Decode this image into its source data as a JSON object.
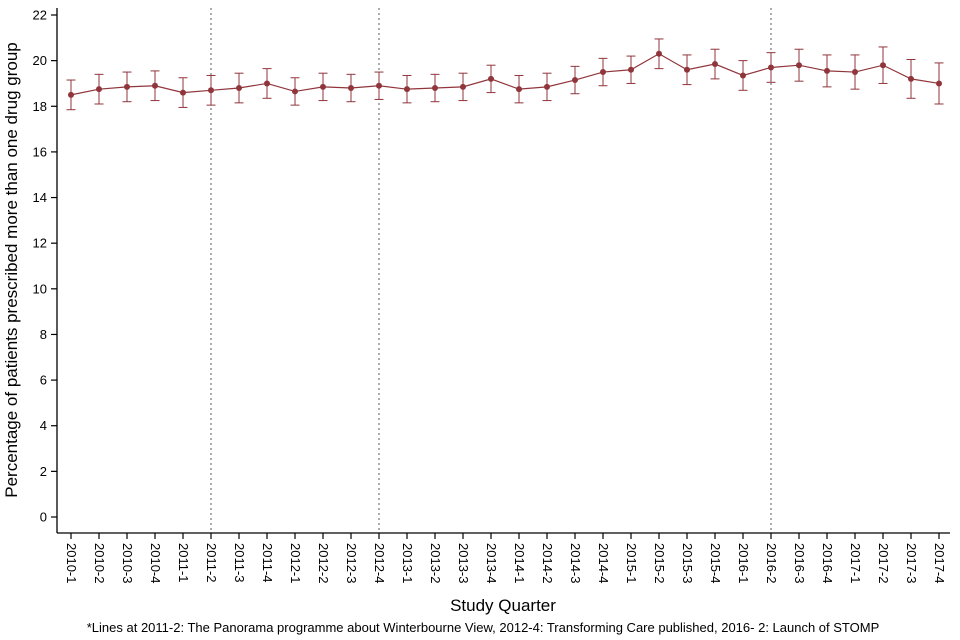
{
  "chart_data": {
    "type": "line",
    "title": "",
    "xlabel": "Study Quarter",
    "ylabel": "Percentage of patients prescribed more than one drug group",
    "ylim": [
      0,
      22
    ],
    "ytick_step": 2,
    "grid": false,
    "legend": "none",
    "categories": [
      "2010-1",
      "2010-2",
      "2010-3",
      "2010-4",
      "2011-1",
      "2011-2",
      "2011-3",
      "2011-4",
      "2012-1",
      "2012-2",
      "2012-3",
      "2012-4",
      "2013-1",
      "2013-2",
      "2013-3",
      "2013-4",
      "2014-1",
      "2014-2",
      "2014-3",
      "2014-4",
      "2015-1",
      "2015-2",
      "2015-3",
      "2015-4",
      "2016-1",
      "2016-2",
      "2016-3",
      "2016-4",
      "2017-1",
      "2017-2",
      "2017-3",
      "2017-4"
    ],
    "series": [
      {
        "name": "Percentage of patients prescribed more than one drug group",
        "values": [
          18.5,
          18.75,
          18.85,
          18.9,
          18.6,
          18.7,
          18.8,
          19.0,
          18.65,
          18.85,
          18.8,
          18.9,
          18.75,
          18.8,
          18.85,
          19.2,
          18.75,
          18.85,
          19.15,
          19.5,
          19.6,
          20.3,
          19.6,
          19.85,
          19.35,
          19.7,
          19.8,
          19.55,
          19.5,
          19.8,
          19.2,
          19.0
        ],
        "errors": [
          0.65,
          0.65,
          0.65,
          0.65,
          0.65,
          0.65,
          0.65,
          0.65,
          0.6,
          0.6,
          0.6,
          0.6,
          0.6,
          0.6,
          0.6,
          0.6,
          0.6,
          0.6,
          0.6,
          0.6,
          0.6,
          0.65,
          0.65,
          0.65,
          0.65,
          0.65,
          0.7,
          0.7,
          0.75,
          0.8,
          0.85,
          0.9
        ]
      }
    ],
    "reference_lines": [
      "2011-2",
      "2012-4",
      "2016-2"
    ],
    "footnote": "*Lines at 2011-2: The Panorama programme about Winterbourne View, 2012-4: Transforming Care published, 2016- 2: Launch of STOMP",
    "colors": {
      "series": "#90353b",
      "axis": "#000000",
      "reference_line": "#595959",
      "background": "#ffffff"
    }
  }
}
